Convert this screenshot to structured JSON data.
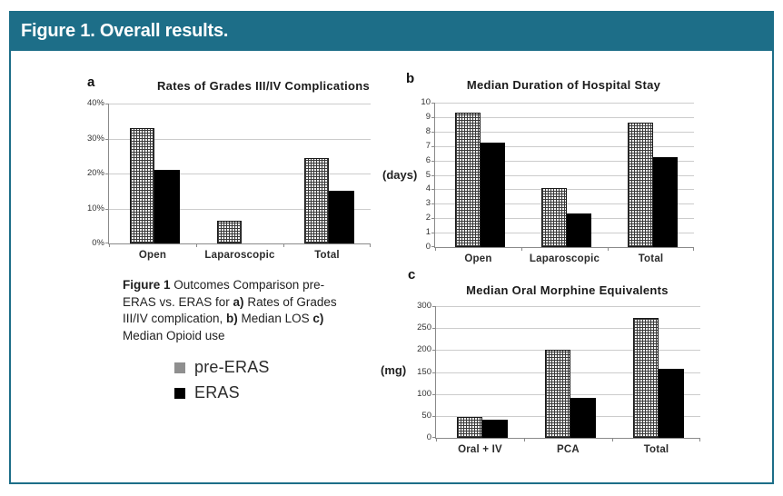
{
  "header": {
    "title": "Figure 1. Overall results."
  },
  "colors": {
    "accent_teal": "#1d6e88",
    "bar_black": "#000000",
    "hatch_line": "#3a3a3a",
    "legend_gray": "#8f8f8f",
    "gridline": "#cccccc",
    "axis": "#8a8a8a"
  },
  "caption": {
    "seg1": "Figure 1",
    "seg2": "  Outcomes Comparison pre-ERAS vs. ERAS for ",
    "seg3": "a)",
    "seg4": " Rates of Grades III/IV complication, ",
    "seg5": "b)",
    "seg6": " Median LOS ",
    "seg7": "c)",
    "seg8": " Median Opioid use"
  },
  "legend": {
    "items": [
      {
        "label": "pre-ERAS",
        "swatch": "gray"
      },
      {
        "label": "ERAS",
        "swatch": "black"
      }
    ]
  },
  "chart_data": [
    {
      "type": "bar",
      "panel": "a",
      "title": "Rates of Grades III/IV Complications",
      "categories": [
        "Open",
        "Laparoscopic",
        "Total"
      ],
      "series": [
        {
          "name": "pre-ERAS",
          "values": [
            33,
            6.5,
            24.5
          ]
        },
        {
          "name": "ERAS",
          "values": [
            21,
            0,
            15
          ]
        }
      ],
      "ylabel": "",
      "ylim": [
        0,
        40
      ],
      "yticks": [
        {
          "value": 0,
          "label": "0%"
        },
        {
          "value": 10,
          "label": "10%"
        },
        {
          "value": 20,
          "label": "20%"
        },
        {
          "value": 30,
          "label": "30%"
        },
        {
          "value": 40,
          "label": "40%"
        }
      ],
      "grid": true,
      "legend_position": "bottom-left-of-figure"
    },
    {
      "type": "bar",
      "panel": "b",
      "title": "Median Duration of Hospital Stay",
      "categories": [
        "Open",
        "Laparoscopic",
        "Total"
      ],
      "series": [
        {
          "name": "pre-ERAS",
          "values": [
            9.3,
            4.1,
            8.6
          ]
        },
        {
          "name": "ERAS",
          "values": [
            7.25,
            2.3,
            6.25
          ]
        }
      ],
      "ylabel": "(days)",
      "ylim": [
        0,
        10
      ],
      "yticks": [
        {
          "value": 0,
          "label": "0"
        },
        {
          "value": 1,
          "label": "1"
        },
        {
          "value": 2,
          "label": "2"
        },
        {
          "value": 3,
          "label": "3"
        },
        {
          "value": 4,
          "label": "4"
        },
        {
          "value": 5,
          "label": "5"
        },
        {
          "value": 6,
          "label": "6"
        },
        {
          "value": 7,
          "label": "7"
        },
        {
          "value": 8,
          "label": "8"
        },
        {
          "value": 9,
          "label": "9"
        },
        {
          "value": 10,
          "label": "10"
        }
      ],
      "grid": true,
      "legend_position": "none"
    },
    {
      "type": "bar",
      "panel": "c",
      "title": "Median Oral Morphine Equivalents",
      "categories": [
        "Oral + IV",
        "PCA",
        "Total"
      ],
      "series": [
        {
          "name": "pre-ERAS",
          "values": [
            48,
            200,
            273
          ]
        },
        {
          "name": "ERAS",
          "values": [
            42,
            92,
            158
          ]
        }
      ],
      "ylabel": "(mg)",
      "ylim": [
        0,
        300
      ],
      "yticks": [
        {
          "value": 0,
          "label": "0"
        },
        {
          "value": 50,
          "label": "50"
        },
        {
          "value": 100,
          "label": "100"
        },
        {
          "value": 150,
          "label": "150"
        },
        {
          "value": 200,
          "label": "200"
        },
        {
          "value": 250,
          "label": "250"
        },
        {
          "value": 300,
          "label": "300"
        }
      ],
      "grid": true,
      "legend_position": "none"
    }
  ]
}
